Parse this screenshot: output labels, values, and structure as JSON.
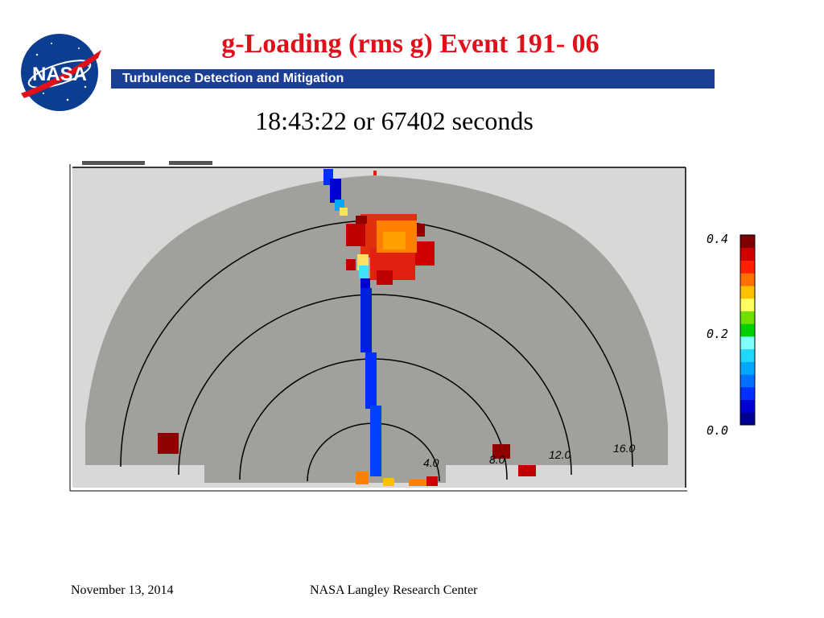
{
  "header": {
    "title": "g-Loading (rms g) Event 191- 06",
    "banner": "Turbulence Detection and Mitigation",
    "logo_text": "NASA"
  },
  "subtitle": "18:43:22 or 67402 seconds",
  "plot": {
    "range_labels": [
      "4.0",
      "8.0",
      "12.0",
      "16.0"
    ],
    "background_color": "#a0a09c"
  },
  "colorbar": {
    "tick_labels": [
      "0.4",
      "0.2",
      "0.0"
    ],
    "colors": [
      "#000090",
      "#0000d0",
      "#0030ff",
      "#0070ff",
      "#00a8ff",
      "#20d8ff",
      "#80ffff",
      "#00d000",
      "#70e000",
      "#ffff60",
      "#ffc000",
      "#ff7000",
      "#ff2000",
      "#d00000",
      "#800000"
    ]
  },
  "footer": {
    "date": "November 13, 2014",
    "org": "NASA Langley Research Center"
  }
}
